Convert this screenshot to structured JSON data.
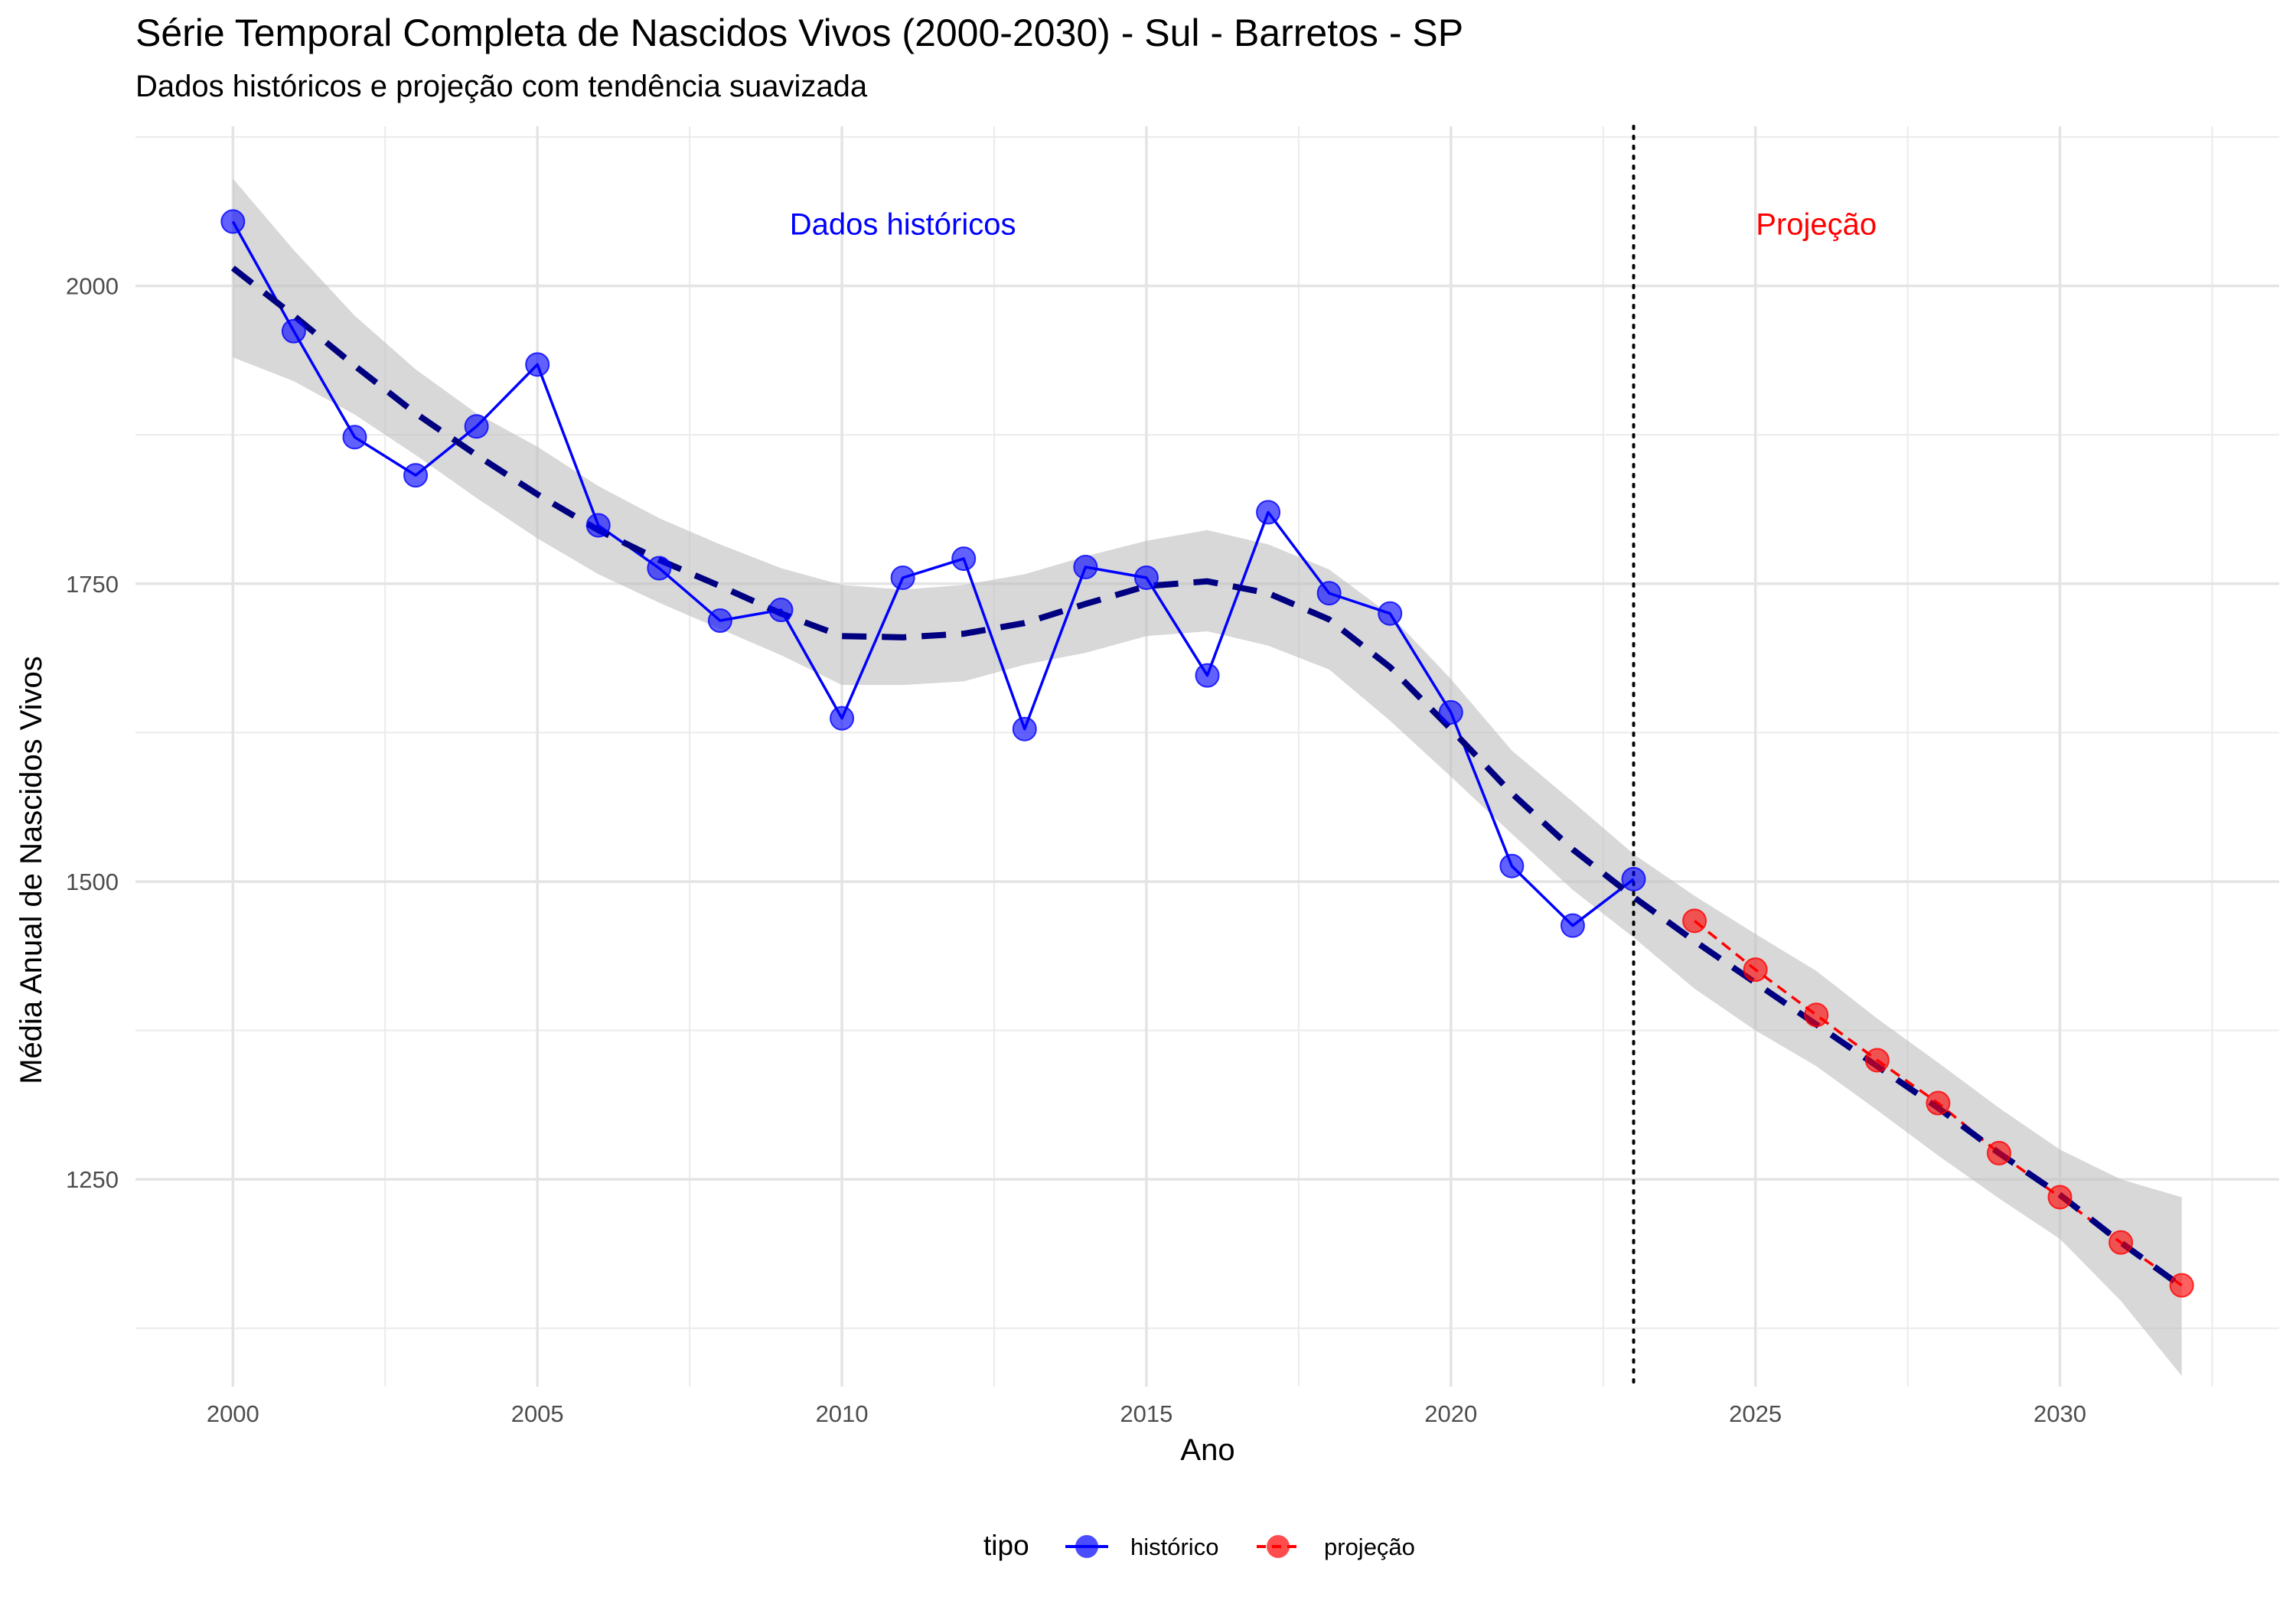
{
  "chart_data": {
    "type": "line",
    "title": "Série Temporal Completa de Nascidos Vivos (2000-2030) -  Sul - Barretos - SP",
    "subtitle": "Dados históricos e projeção com tendência suavizada",
    "xlabel": "Ano",
    "ylabel": "Média Anual de Nascidos Vivos",
    "xlim": [
      1998.4,
      2033.6
    ],
    "ylim": [
      1076,
      2134
    ],
    "x_ticks": [
      2000,
      2005,
      2010,
      2015,
      2020,
      2025,
      2030
    ],
    "x_tick_labels": [
      "2000",
      "2005",
      "2010",
      "2015",
      "2020",
      "2025",
      "2030"
    ],
    "y_ticks": [
      1250,
      1500,
      1750,
      2000
    ],
    "y_tick_labels": [
      "1250",
      "1500",
      "1750",
      "2000"
    ],
    "grid": true,
    "series": [
      {
        "name": "histórico",
        "color": "#0000ff",
        "line_style": "solid",
        "x": [
          2000,
          2001,
          2002,
          2003,
          2004,
          2005,
          2006,
          2007,
          2008,
          2009,
          2010,
          2011,
          2012,
          2013,
          2014,
          2015,
          2016,
          2017,
          2018,
          2019,
          2020,
          2021,
          2022,
          2023
        ],
        "values": [
          2054,
          1962,
          1873,
          1841,
          1882,
          1934,
          1799,
          1763,
          1719,
          1728,
          1637,
          1755,
          1771,
          1628,
          1764,
          1755,
          1673,
          1810,
          1742,
          1725,
          1642,
          1513,
          1463,
          1502
        ]
      },
      {
        "name": "projeção",
        "color": "#ff0000",
        "line_style": "dashed",
        "x": [
          2024,
          2025,
          2026,
          2027,
          2028,
          2029,
          2030,
          2031,
          2032
        ],
        "values": [
          1467,
          1426,
          1388,
          1350,
          1314,
          1272,
          1235,
          1197,
          1161
        ]
      }
    ],
    "trend": {
      "line_color": "#000080",
      "band_color": "#bebebe",
      "x": [
        2000,
        2001,
        2002,
        2003,
        2004,
        2005,
        2006,
        2007,
        2008,
        2009,
        2010,
        2011,
        2012,
        2013,
        2014,
        2015,
        2016,
        2017,
        2018,
        2019,
        2020,
        2021,
        2022,
        2023,
        2024,
        2025,
        2026,
        2027,
        2028,
        2029,
        2030,
        2031,
        2032
      ],
      "values": [
        2015,
        1975,
        1933,
        1893,
        1858,
        1825,
        1795,
        1770,
        1748,
        1725,
        1706,
        1705,
        1708,
        1717,
        1733,
        1748,
        1752,
        1742,
        1720,
        1680,
        1628,
        1574,
        1527,
        1487,
        1450,
        1415,
        1380,
        1345,
        1310,
        1272,
        1237,
        1197,
        1160
      ],
      "lower": [
        1940,
        1920,
        1892,
        1858,
        1822,
        1788,
        1758,
        1734,
        1712,
        1690,
        1665,
        1665,
        1668,
        1682,
        1692,
        1706,
        1710,
        1698,
        1678,
        1635,
        1588,
        1540,
        1493,
        1453,
        1410,
        1375,
        1345,
        1308,
        1270,
        1234,
        1200,
        1148,
        1085
      ],
      "upper": [
        2090,
        2030,
        1975,
        1930,
        1893,
        1865,
        1832,
        1805,
        1783,
        1763,
        1749,
        1745,
        1749,
        1758,
        1773,
        1786,
        1795,
        1783,
        1762,
        1724,
        1670,
        1610,
        1567,
        1523,
        1488,
        1456,
        1425,
        1385,
        1348,
        1310,
        1275,
        1250,
        1235
      ]
    },
    "divider_x": 2023,
    "annotations": [
      {
        "text": "Dados históricos",
        "x": 2011,
        "y": 2052,
        "color": "#0000ff"
      },
      {
        "text": "Projeção",
        "x": 2026,
        "y": 2052,
        "color": "#ff0000"
      }
    ],
    "legend": {
      "title": "tipo",
      "position": "bottom",
      "items": [
        {
          "label": "histórico",
          "color": "#0000ff"
        },
        {
          "label": "projeção",
          "color": "#ff0000"
        }
      ]
    }
  }
}
